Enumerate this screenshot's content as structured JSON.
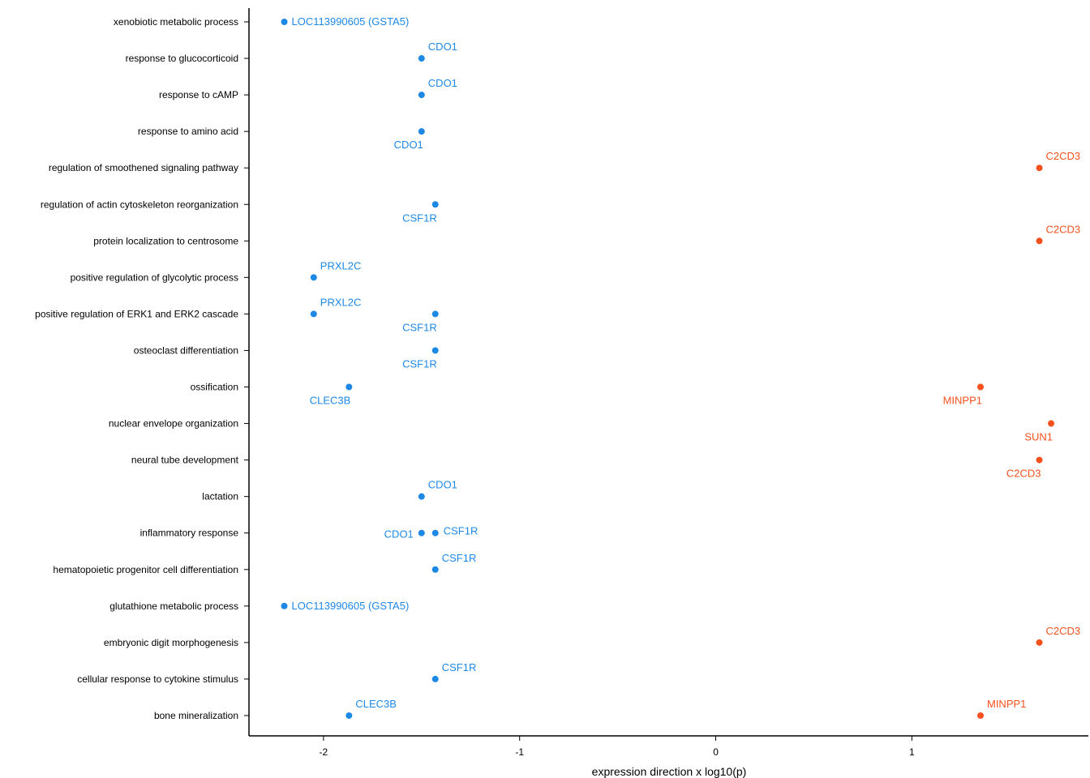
{
  "chart_data": {
    "type": "scatter",
    "xlabel": "expression direction x log10(p)",
    "ylabel": "",
    "xlim": [
      -2.38,
      1.9
    ],
    "xticks": [
      -2,
      -1,
      0,
      1
    ],
    "xtick_labels": [
      "-2",
      "-1",
      "0",
      "1"
    ],
    "grid": false,
    "legend": "none",
    "colors": {
      "negative": "#1e88e5",
      "positive": "#f4511e"
    },
    "categories": [
      "xenobiotic metabolic process",
      "response to glucocorticoid",
      "response to cAMP",
      "response to amino acid",
      "regulation of smoothened signaling pathway",
      "regulation of actin cytoskeleton reorganization",
      "protein localization to centrosome",
      "positive regulation of glycolytic process",
      "positive regulation of ERK1 and ERK2 cascade",
      "osteoclast differentiation",
      "ossification",
      "nuclear envelope organization",
      "neural tube development",
      "lactation",
      "inflammatory response",
      "hematopoietic progenitor cell differentiation",
      "glutathione metabolic process",
      "embryonic digit morphogenesis",
      "cellular response to cytokine stimulus",
      "bone mineralization"
    ],
    "points": [
      {
        "category": "xenobiotic metabolic process",
        "x": -2.2,
        "label": "LOC113990605 (GSTA5)",
        "pos": "right"
      },
      {
        "category": "response to glucocorticoid",
        "x": -1.5,
        "label": "CDO1",
        "pos": "above-right"
      },
      {
        "category": "response to cAMP",
        "x": -1.5,
        "label": "CDO1",
        "pos": "above-right"
      },
      {
        "category": "response to amino acid",
        "x": -1.5,
        "label": "CDO1",
        "pos": "below-left"
      },
      {
        "category": "regulation of smoothened signaling pathway",
        "x": 1.65,
        "label": "C2CD3",
        "pos": "above-right"
      },
      {
        "category": "regulation of actin cytoskeleton reorganization",
        "x": -1.43,
        "label": "CSF1R",
        "pos": "below-left"
      },
      {
        "category": "protein localization to centrosome",
        "x": 1.65,
        "label": "C2CD3",
        "pos": "above-right"
      },
      {
        "category": "positive regulation of glycolytic process",
        "x": -2.05,
        "label": "PRXL2C",
        "pos": "above-right"
      },
      {
        "category": "positive regulation of ERK1 and ERK2 cascade",
        "x": -2.05,
        "label": "PRXL2C",
        "pos": "above-right"
      },
      {
        "category": "positive regulation of ERK1 and ERK2 cascade",
        "x": -1.43,
        "label": "CSF1R",
        "pos": "below-left"
      },
      {
        "category": "osteoclast differentiation",
        "x": -1.43,
        "label": "CSF1R",
        "pos": "below-left"
      },
      {
        "category": "ossification",
        "x": -1.87,
        "label": "CLEC3B",
        "pos": "below-left"
      },
      {
        "category": "ossification",
        "x": 1.35,
        "label": "MINPP1",
        "pos": "below-left"
      },
      {
        "category": "nuclear envelope organization",
        "x": 1.71,
        "label": "SUN1",
        "pos": "below-left"
      },
      {
        "category": "neural tube development",
        "x": 1.65,
        "label": "C2CD3",
        "pos": "below-left"
      },
      {
        "category": "lactation",
        "x": -1.5,
        "label": "CDO1",
        "pos": "above-right"
      },
      {
        "category": "inflammatory response",
        "x": -1.5,
        "label": "CDO1",
        "pos": "left"
      },
      {
        "category": "inflammatory response",
        "x": -1.43,
        "label": "CSF1R",
        "pos": "right-up"
      },
      {
        "category": "hematopoietic progenitor cell differentiation",
        "x": -1.43,
        "label": "CSF1R",
        "pos": "above-right"
      },
      {
        "category": "glutathione metabolic process",
        "x": -2.2,
        "label": "LOC113990605 (GSTA5)",
        "pos": "right"
      },
      {
        "category": "embryonic digit morphogenesis",
        "x": 1.65,
        "label": "C2CD3",
        "pos": "above-right"
      },
      {
        "category": "cellular response to cytokine stimulus",
        "x": -1.43,
        "label": "CSF1R",
        "pos": "above-right"
      },
      {
        "category": "bone mineralization",
        "x": -1.87,
        "label": "CLEC3B",
        "pos": "above-right"
      },
      {
        "category": "bone mineralization",
        "x": 1.35,
        "label": "MINPP1",
        "pos": "above-right"
      }
    ]
  }
}
